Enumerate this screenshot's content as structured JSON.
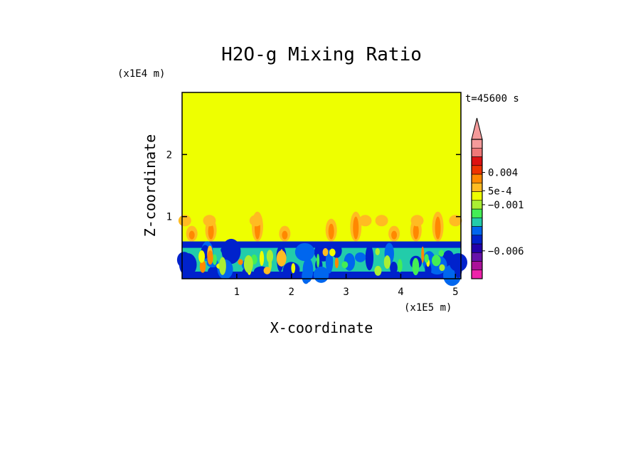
{
  "chart_data": {
    "type": "heatmap",
    "title": "H2O-g Mixing Ratio",
    "xlabel": "X-coordinate",
    "ylabel": "Z-coordinate",
    "x_unit": "(x1E5 m)",
    "y_unit": "(x1E4 m)",
    "time_label": "t=45600 s",
    "x_ticks": [
      "1",
      "2",
      "3",
      "4",
      "5"
    ],
    "y_ticks": [
      "1",
      "2"
    ],
    "xlim": [
      0,
      5.1
    ],
    "ylim": [
      0,
      3.0
    ],
    "background_level_color": "#eeff00",
    "features": {
      "layer_boundary_top": 1.05,
      "dense_layer_top": 0.6,
      "plume_x_positions": [
        0.1,
        0.45,
        1.3,
        1.8,
        2.65,
        3.1,
        3.8,
        4.2,
        4.6
      ]
    },
    "colorbar": {
      "colors": [
        "#ee22aa",
        "#aa1199",
        "#6611aa",
        "#2200aa",
        "#0022cc",
        "#0066ee",
        "#22ccaa",
        "#44ee55",
        "#aaee33",
        "#eeff00",
        "#ffbb22",
        "#ff8800",
        "#ee3300",
        "#dd1111",
        "#ee7777",
        "#f49a9a"
      ],
      "tick_labels": [
        "0.004",
        "5e-4",
        "−0.001",
        "−0.006"
      ],
      "extend_top": true
    }
  }
}
